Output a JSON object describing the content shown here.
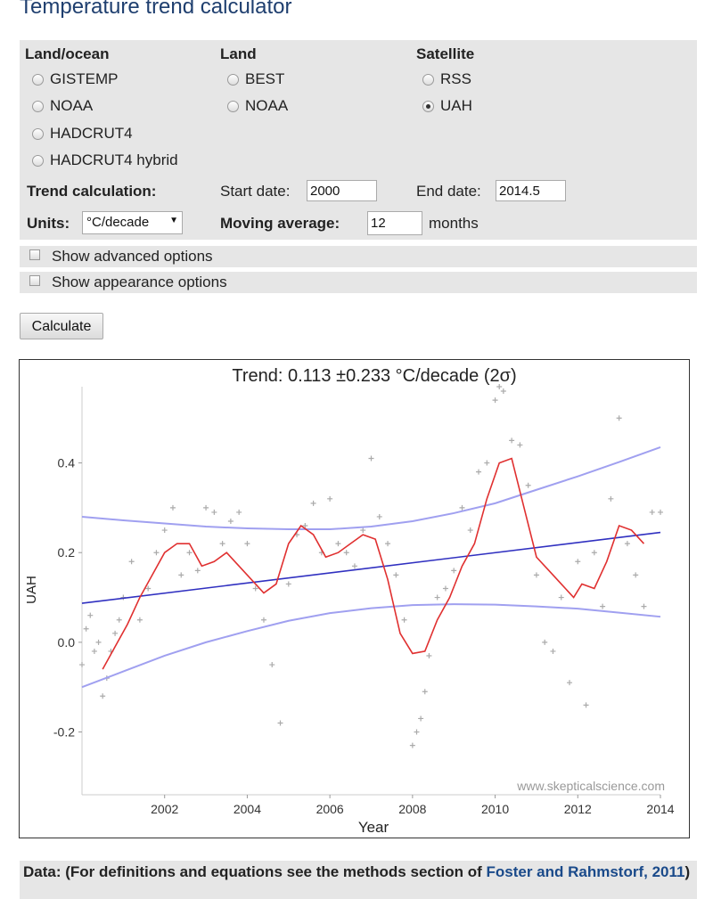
{
  "title": "Temperature trend calculator",
  "form": {
    "groups": [
      {
        "heading": "Land/ocean",
        "options": [
          {
            "label": "GISTEMP",
            "checked": false
          },
          {
            "label": "NOAA",
            "checked": false
          },
          {
            "label": "HADCRUT4",
            "checked": false
          },
          {
            "label": "HADCRUT4 hybrid",
            "checked": false
          }
        ]
      },
      {
        "heading": "Land",
        "options": [
          {
            "label": "BEST",
            "checked": false
          },
          {
            "label": "NOAA",
            "checked": false
          }
        ]
      },
      {
        "heading": "Satellite",
        "options": [
          {
            "label": "RSS",
            "checked": false
          },
          {
            "label": "UAH",
            "checked": true
          }
        ]
      }
    ],
    "trend_label": "Trend calculation:",
    "start_label": "Start date:",
    "start_value": "2000",
    "end_label": "End date:",
    "end_value": "2014.5",
    "units_label": "Units:",
    "units_value": "°C/decade",
    "units_arrow": "▼",
    "moving_label": "Moving average:",
    "moving_value": "12",
    "months_label": "months",
    "advanced_label": "Show advanced options",
    "appearance_label": "Show appearance options",
    "calculate_label": "Calculate"
  },
  "footer": {
    "text": "Data: (For definitions and equations see the methods section of ",
    "link": "Foster and Rahmstorf, 2011",
    "close": ")"
  },
  "chart_data": {
    "type": "line",
    "title": "Trend: 0.113 ±0.233 °C/decade (2σ)",
    "xlabel": "Year",
    "ylabel": "UAH",
    "watermark": "www.skepticalscience.com",
    "xlim": [
      2000,
      2014
    ],
    "ylim": [
      -0.34,
      0.57
    ],
    "xticks": [
      2002,
      2004,
      2006,
      2008,
      2010,
      2012,
      2014
    ],
    "yticks": [
      -0.2,
      0.0,
      0.2,
      0.4
    ],
    "ytick_labels": [
      "-0.2",
      "0.0",
      "0.2",
      "0.4"
    ],
    "colors": {
      "moving_average": "#e03030",
      "trend": "#3030c0",
      "confidence": "#a0a0f0",
      "monthly": "#aaaaaa"
    },
    "trend": {
      "x": [
        2000,
        2014
      ],
      "y": [
        0.087,
        0.245
      ]
    },
    "upper_band": {
      "x": [
        2000,
        2001,
        2002,
        2003,
        2004,
        2005,
        2006,
        2007,
        2008,
        2009,
        2010,
        2011,
        2012,
        2013,
        2014
      ],
      "y": [
        0.28,
        0.272,
        0.265,
        0.258,
        0.254,
        0.252,
        0.252,
        0.258,
        0.27,
        0.288,
        0.31,
        0.34,
        0.37,
        0.402,
        0.435
      ]
    },
    "lower_band": {
      "x": [
        2000,
        2001,
        2002,
        2003,
        2004,
        2005,
        2006,
        2007,
        2008,
        2009,
        2010,
        2011,
        2012,
        2013,
        2014
      ],
      "y": [
        -0.1,
        -0.065,
        -0.03,
        0.0,
        0.025,
        0.048,
        0.065,
        0.076,
        0.083,
        0.085,
        0.084,
        0.08,
        0.075,
        0.066,
        0.057
      ]
    },
    "moving_average": {
      "x": [
        2000.5,
        2000.8,
        2001.1,
        2001.4,
        2001.7,
        2002.0,
        2002.3,
        2002.6,
        2002.9,
        2003.2,
        2003.5,
        2003.8,
        2004.1,
        2004.4,
        2004.7,
        2005.0,
        2005.3,
        2005.6,
        2005.9,
        2006.2,
        2006.5,
        2006.8,
        2007.1,
        2007.4,
        2007.7,
        2008.0,
        2008.3,
        2008.6,
        2008.9,
        2009.2,
        2009.5,
        2009.8,
        2010.1,
        2010.4,
        2010.7,
        2011.0,
        2011.3,
        2011.6,
        2011.9,
        2012.1,
        2012.4,
        2012.7,
        2013.0,
        2013.3,
        2013.6
      ],
      "y": [
        -0.06,
        -0.01,
        0.04,
        0.1,
        0.15,
        0.2,
        0.22,
        0.22,
        0.17,
        0.18,
        0.2,
        0.17,
        0.14,
        0.11,
        0.13,
        0.22,
        0.26,
        0.24,
        0.19,
        0.2,
        0.22,
        0.24,
        0.23,
        0.14,
        0.02,
        -0.025,
        -0.02,
        0.05,
        0.1,
        0.17,
        0.22,
        0.32,
        0.4,
        0.41,
        0.3,
        0.19,
        0.16,
        0.13,
        0.1,
        0.13,
        0.12,
        0.18,
        0.26,
        0.25,
        0.22
      ]
    },
    "monthly": {
      "x": [
        2000.0,
        2000.1,
        2000.2,
        2000.3,
        2000.4,
        2000.5,
        2000.6,
        2000.7,
        2000.8,
        2000.9,
        2001.0,
        2001.2,
        2001.4,
        2001.6,
        2001.8,
        2002.0,
        2002.2,
        2002.4,
        2002.6,
        2002.8,
        2003.0,
        2003.2,
        2003.4,
        2003.6,
        2003.8,
        2004.0,
        2004.2,
        2004.4,
        2004.6,
        2004.8,
        2005.0,
        2005.2,
        2005.4,
        2005.6,
        2005.8,
        2006.0,
        2006.2,
        2006.4,
        2006.6,
        2006.8,
        2007.0,
        2007.2,
        2007.4,
        2007.6,
        2007.8,
        2008.0,
        2008.1,
        2008.2,
        2008.3,
        2008.4,
        2008.6,
        2008.8,
        2009.0,
        2009.2,
        2009.4,
        2009.6,
        2009.8,
        2010.0,
        2010.1,
        2010.2,
        2010.4,
        2010.6,
        2010.8,
        2011.0,
        2011.2,
        2011.4,
        2011.6,
        2011.8,
        2012.0,
        2012.2,
        2012.4,
        2012.6,
        2012.8,
        2013.0,
        2013.2,
        2013.4,
        2013.6,
        2013.8,
        2014.0
      ],
      "y": [
        -0.05,
        0.03,
        0.06,
        -0.02,
        0.0,
        -0.12,
        -0.08,
        -0.02,
        0.02,
        0.05,
        0.1,
        0.18,
        0.05,
        0.12,
        0.2,
        0.25,
        0.3,
        0.15,
        0.2,
        0.16,
        0.3,
        0.29,
        0.22,
        0.27,
        0.29,
        0.22,
        0.12,
        0.05,
        -0.05,
        -0.18,
        0.13,
        0.24,
        0.26,
        0.31,
        0.2,
        0.32,
        0.22,
        0.2,
        0.17,
        0.25,
        0.41,
        0.28,
        0.22,
        0.15,
        0.05,
        -0.23,
        -0.2,
        -0.17,
        -0.11,
        -0.03,
        0.1,
        0.12,
        0.16,
        0.3,
        0.25,
        0.38,
        0.4,
        0.54,
        0.57,
        0.56,
        0.45,
        0.44,
        0.35,
        0.15,
        0.0,
        -0.02,
        0.1,
        -0.09,
        0.18,
        -0.14,
        0.2,
        0.08,
        0.32,
        0.5,
        0.22,
        0.15,
        0.08,
        0.29,
        0.29
      ]
    }
  }
}
